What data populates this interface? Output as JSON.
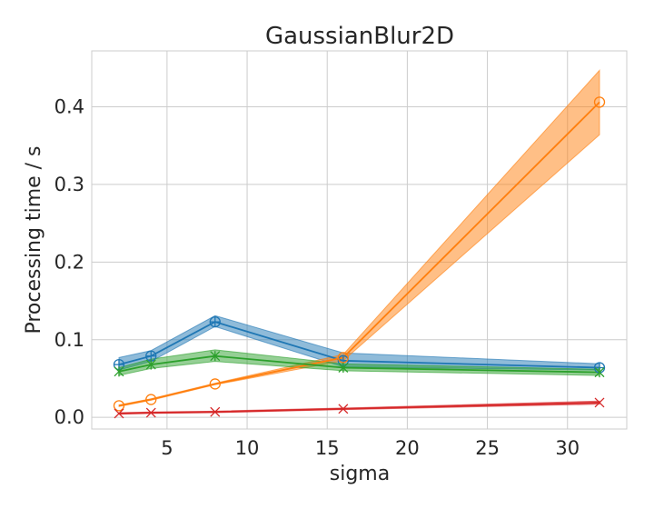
{
  "chart_data": {
    "type": "line",
    "title": "GaussianBlur2D",
    "xlabel": "sigma",
    "ylabel": "Processing time / s",
    "xlim": [
      0.3,
      33.7
    ],
    "ylim": [
      -0.015,
      0.472
    ],
    "xticks": [
      5,
      10,
      15,
      20,
      25,
      30
    ],
    "yticks": [
      0.0,
      0.1,
      0.2,
      0.3,
      0.4
    ],
    "ytick_labels": [
      "0.0",
      "0.1",
      "0.2",
      "0.3",
      "0.4"
    ],
    "grid": true,
    "x": [
      2,
      4,
      8,
      16,
      32
    ],
    "series": [
      {
        "color": "#1f77b4",
        "marker": "circle-plus",
        "values": [
          0.068,
          0.079,
          0.123,
          0.073,
          0.064
        ],
        "lower": [
          0.061,
          0.072,
          0.117,
          0.065,
          0.061
        ],
        "upper": [
          0.077,
          0.086,
          0.131,
          0.083,
          0.069
        ]
      },
      {
        "color": "#ff7f0e",
        "marker": "circle",
        "values": [
          0.015,
          0.023,
          0.043,
          0.077,
          0.406
        ],
        "lower": [
          0.014,
          0.022,
          0.042,
          0.073,
          0.364
        ],
        "upper": [
          0.016,
          0.024,
          0.044,
          0.081,
          0.447
        ]
      },
      {
        "color": "#2ca02c",
        "marker": "x-star",
        "values": [
          0.059,
          0.068,
          0.079,
          0.064,
          0.058
        ],
        "lower": [
          0.054,
          0.063,
          0.072,
          0.06,
          0.054
        ],
        "upper": [
          0.064,
          0.075,
          0.087,
          0.069,
          0.062
        ]
      },
      {
        "color": "#d62728",
        "marker": "x",
        "values": [
          0.005,
          0.006,
          0.007,
          0.011,
          0.019
        ],
        "lower": [
          0.004,
          0.005,
          0.006,
          0.01,
          0.017
        ],
        "upper": [
          0.006,
          0.007,
          0.008,
          0.012,
          0.021
        ]
      }
    ]
  }
}
